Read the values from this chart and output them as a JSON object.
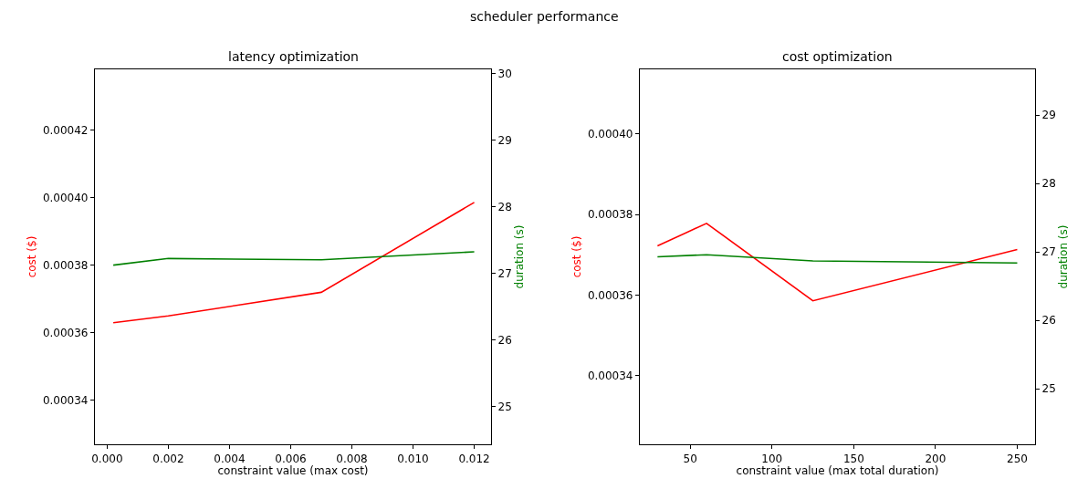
{
  "chart_data": [
    {
      "type": "line",
      "title": "latency optimization",
      "xlabel": "constraint value (max cost)",
      "ylabel": "cost ($)",
      "y2label": "duration (s)",
      "annotations": [
        "scheduler performance"
      ],
      "x": [
        0.0002,
        0.002,
        0.007,
        0.012
      ],
      "series": [
        {
          "color": "#ff0000",
          "values": [
            0.000363,
            0.000365,
            0.000372,
            0.0003986
          ]
        },
        {
          "color": "#008000",
          "axis": "y2",
          "values": [
            27.12,
            27.22,
            27.2,
            27.32
          ]
        }
      ],
      "xlim": [
        -0.0004,
        0.01255
      ],
      "xticks": [
        {
          "value": 0,
          "label": "0.000"
        },
        {
          "value": 0.002,
          "label": "0.002"
        },
        {
          "value": 0.004,
          "label": "0.004"
        },
        {
          "value": 0.006,
          "label": "0.006"
        },
        {
          "value": 0.008,
          "label": "0.008"
        },
        {
          "value": 0.01,
          "label": "0.010"
        },
        {
          "value": 0.012,
          "label": "0.012"
        }
      ],
      "ylim": [
        0.000327,
        0.000438
      ],
      "yticks": [
        {
          "value": 0.00034,
          "label": "0.00034"
        },
        {
          "value": 0.00036,
          "label": "0.00036"
        },
        {
          "value": 0.00038,
          "label": "0.00038"
        },
        {
          "value": 0.0004,
          "label": "0.00040"
        },
        {
          "value": 0.00042,
          "label": "0.00042"
        }
      ],
      "y2lim": [
        24.43,
        30.06
      ],
      "y2ticks": [
        25,
        26,
        27,
        28,
        29,
        30
      ],
      "line_style": "solid"
    },
    {
      "type": "line",
      "title": "cost optimization",
      "xlabel": "constraint value (max total duration)",
      "ylabel": "cost ($)",
      "y2label": "duration (s)",
      "x": [
        30,
        60,
        125,
        250
      ],
      "series": [
        {
          "color": "#ff0000",
          "values": [
            0.0003722,
            0.0003778,
            0.0003586,
            0.0003713
          ]
        },
        {
          "color": "#008000",
          "axis": "y2",
          "values": [
            26.93,
            26.96,
            26.87,
            26.84
          ]
        }
      ],
      "xlim": [
        19.2,
        260.9
      ],
      "xticks": [
        50,
        100,
        150,
        200,
        250
      ],
      "ylim": [
        0.000323,
        0.000416
      ],
      "yticks": [
        {
          "value": 0.00034,
          "label": "0.00034"
        },
        {
          "value": 0.00036,
          "label": "0.00036"
        },
        {
          "value": 0.00038,
          "label": "0.00038"
        },
        {
          "value": 0.0004,
          "label": "0.00040"
        }
      ],
      "y2lim": [
        24.19,
        29.67
      ],
      "y2ticks": [
        25,
        26,
        27,
        28,
        29
      ],
      "line_style": "solid"
    }
  ]
}
